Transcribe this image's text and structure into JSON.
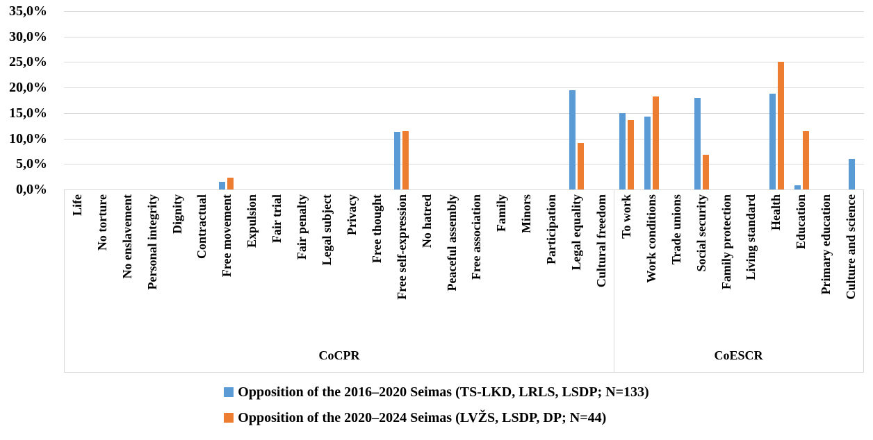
{
  "chart_data": {
    "type": "bar",
    "title": "",
    "xlabel": "",
    "ylabel": "",
    "grid": true,
    "grid_color": "#D9D9D9",
    "axis_border_color": "#D9D9D9",
    "legend_position": "bottom",
    "y_axis": {
      "min": 0,
      "max": 35,
      "tick_values": [
        35,
        30,
        25,
        20,
        15,
        10,
        5,
        0
      ],
      "tick_labels": [
        "35,0%",
        "30,0%",
        "25,0%",
        "20,0%",
        "15,0%",
        "10,0%",
        "5,0%",
        "0,0%"
      ]
    },
    "categories": [
      "Life",
      "No torture",
      "No enslavement",
      "Personal integrity",
      "Dignity",
      "Contractual",
      "Free movement",
      "Expulsion",
      "Fair trial",
      "Fair penalty",
      "Legal subject",
      "Privacy",
      "Free thought",
      "Free self-expression",
      "No hatred",
      "Peaceful assembly",
      "Free association",
      "Family",
      "Minors",
      "Participation",
      "Legal equality",
      "Cultural freedom",
      "To work",
      "Work conditions",
      "Trade unions",
      "Social security",
      "Family protection",
      "Living standard",
      "Health",
      "Education",
      "Primary education",
      "Culture and science"
    ],
    "group_spans": [
      {
        "label": "CoCPR",
        "from": 0,
        "to": 21
      },
      {
        "label": "CoESCR",
        "from": 22,
        "to": 31
      }
    ],
    "series": [
      {
        "name": "Opposition of the 2016–2020 Seimas (TS-LKD, LRLS, LSDP; N=133)",
        "color": "#5B9BD5",
        "values": [
          0,
          0,
          0,
          0,
          0,
          0,
          1.5,
          0,
          0,
          0,
          0,
          0,
          0,
          11.3,
          0,
          0,
          0,
          0,
          0,
          0,
          19.5,
          0,
          15.0,
          14.3,
          0,
          18.0,
          0,
          0,
          18.8,
          0.8,
          0,
          6.0
        ]
      },
      {
        "name": "Opposition of the 2020–2024 Seimas (LVŽS, LSDP, DP; N=44)",
        "color": "#ED7D31",
        "values": [
          0,
          0,
          0,
          0,
          0,
          0,
          2.3,
          0,
          0,
          0,
          0,
          0,
          0,
          11.4,
          0,
          0,
          0,
          0,
          0,
          0,
          9.1,
          0,
          13.6,
          18.2,
          0,
          6.8,
          0,
          0,
          25.0,
          11.4,
          0,
          0
        ]
      }
    ]
  }
}
